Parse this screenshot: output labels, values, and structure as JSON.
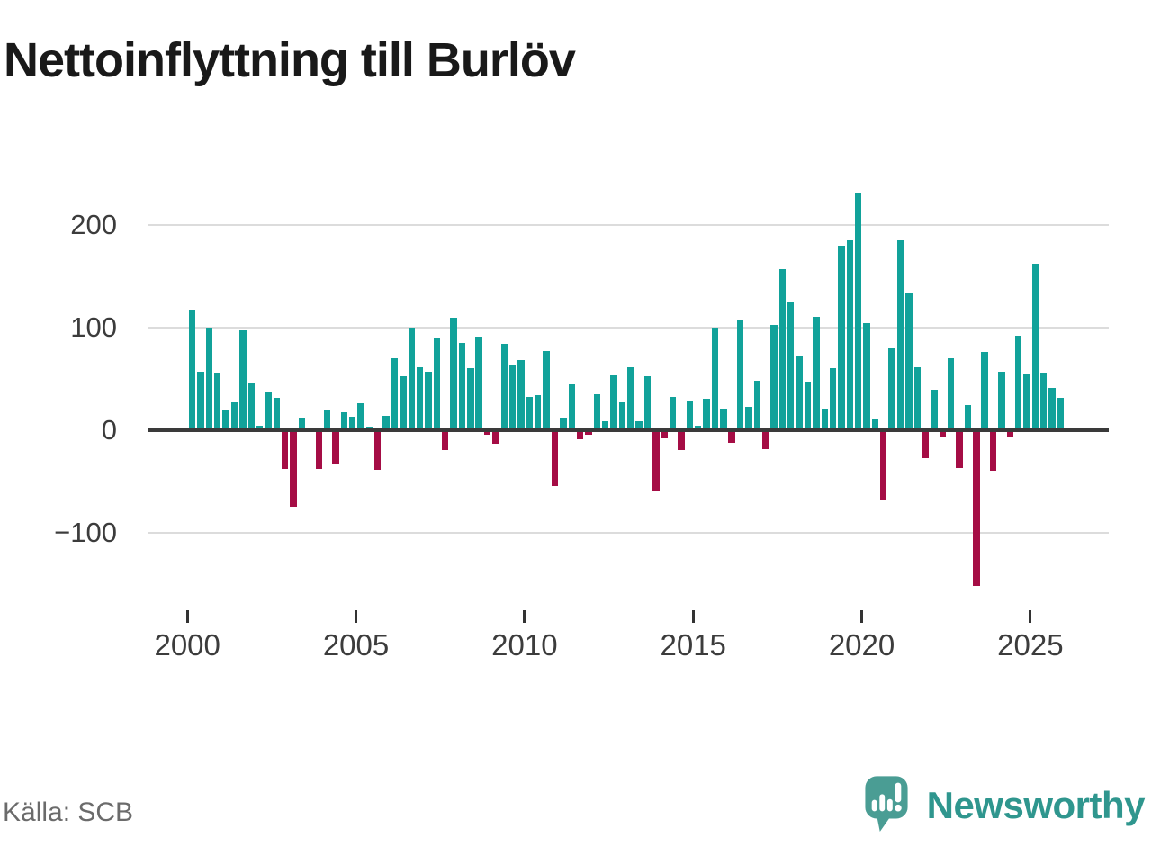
{
  "title": "Nettoinflyttning till Burlöv",
  "source": "Källa: SCB",
  "branding": {
    "logo_text": "Newsworthy",
    "logo_icon": "newsworthy-speech-bubble-bar-chart-icon"
  },
  "chart_data": {
    "type": "bar",
    "title": "Nettoinflyttning till Burlöv",
    "frequency": "quarterly",
    "start_year": 2000,
    "values": [
      117,
      57,
      100,
      56,
      19,
      27,
      97,
      45,
      4,
      37,
      31,
      -38,
      -75,
      12,
      0,
      -38,
      20,
      -34,
      17,
      13,
      26,
      3,
      -39,
      14,
      70,
      52,
      100,
      61,
      57,
      89,
      -20,
      109,
      85,
      60,
      91,
      -5,
      -14,
      84,
      64,
      68,
      32,
      34,
      77,
      -55,
      12,
      44,
      -9,
      -5,
      35,
      8,
      53,
      27,
      61,
      8,
      52,
      -60,
      -8,
      32,
      -20,
      28,
      4,
      30,
      100,
      21,
      -13,
      107,
      22,
      48,
      -19,
      102,
      157,
      124,
      72,
      47,
      110,
      21,
      60,
      179,
      185,
      231,
      104,
      10,
      -68,
      79,
      185,
      134,
      61,
      -28,
      39,
      -7,
      70,
      -37,
      24,
      -152,
      76,
      -40,
      57,
      -7,
      92,
      54,
      162,
      56,
      41,
      31
    ],
    "x_tick_years": [
      2000,
      2005,
      2010,
      2015,
      2020,
      2025
    ],
    "x_tick_labels": [
      "2000",
      "2005",
      "2010",
      "2015",
      "2020",
      "2025"
    ],
    "y_ticks": [
      200,
      100,
      0,
      -100
    ],
    "y_tick_labels": [
      "200",
      "100",
      "0",
      "−100"
    ],
    "ylim": [
      -160,
      245
    ],
    "grid": "horizontal",
    "legend": "none",
    "colors": {
      "positive": "#11a29a",
      "negative": "#a50d45",
      "gridline": "#dcdcdc",
      "zero_line": "#3a3a3a",
      "axis_text": "#3c3c3c"
    }
  }
}
